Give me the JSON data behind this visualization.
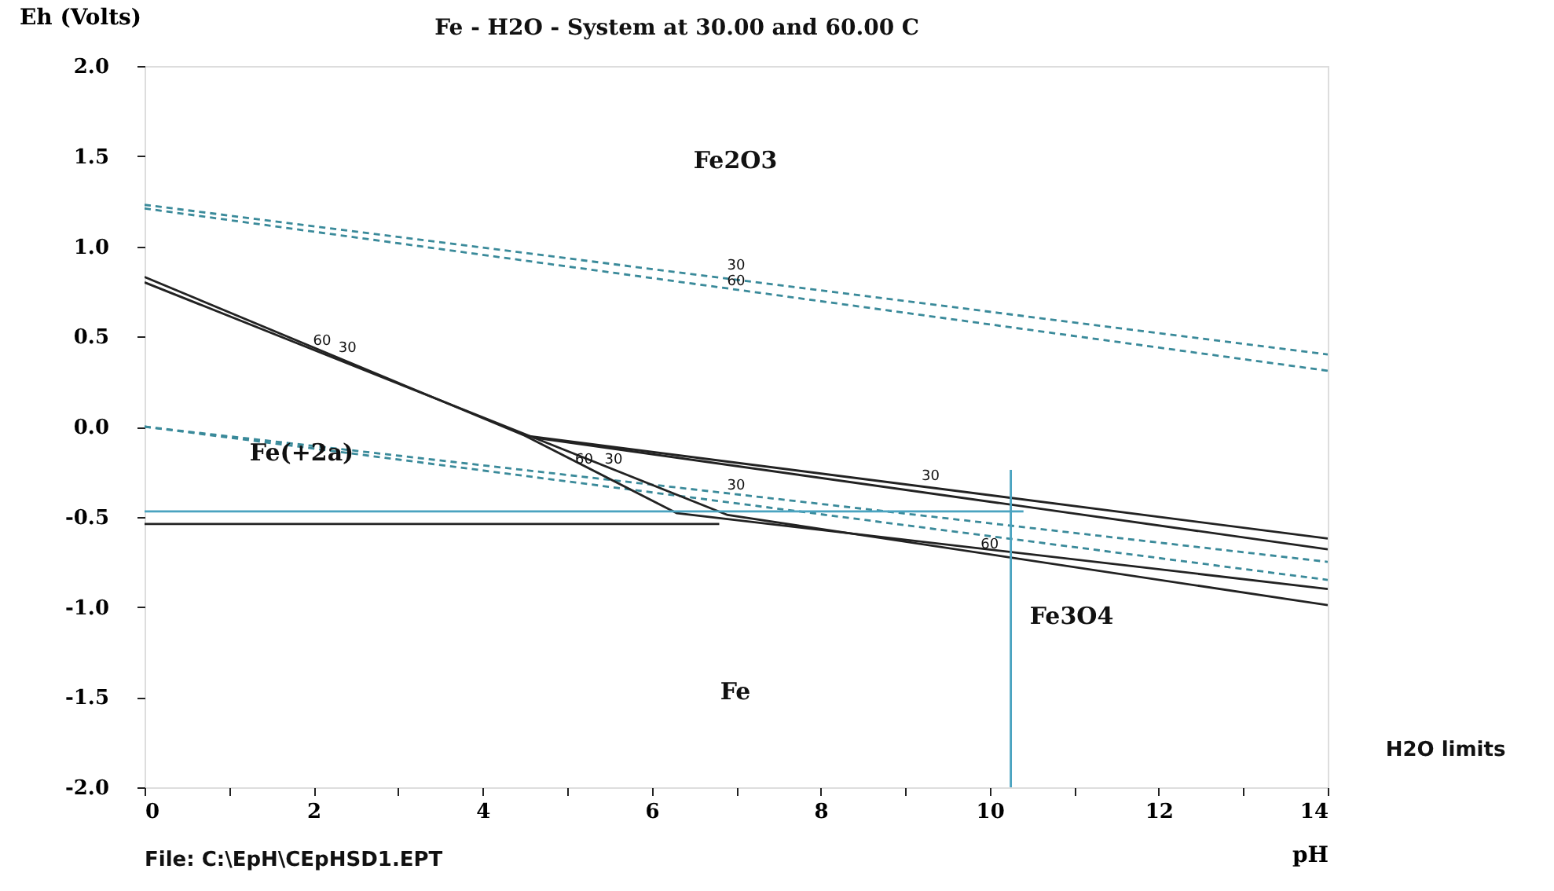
{
  "chart_data": {
    "type": "line",
    "title": "Fe - H2O - System at 30.00 and 60.00 C",
    "xlabel": "pH",
    "ylabel": "Eh (Volts)",
    "xlim": [
      0,
      14
    ],
    "ylim": [
      -2.0,
      2.0
    ],
    "xticks": [
      0,
      {
        "value": 1,
        "label": null
      },
      2,
      {
        "value": 3,
        "label": null
      },
      4,
      {
        "value": 5,
        "label": null
      },
      6,
      {
        "value": 7,
        "label": null
      },
      8,
      {
        "value": 9,
        "label": null
      },
      10,
      {
        "value": 11,
        "label": null
      },
      12,
      {
        "value": 13,
        "label": null
      },
      14
    ],
    "yticks": [
      {
        "value": -2.0,
        "label": "-2.0"
      },
      {
        "value": -1.5,
        "label": "-1.5"
      },
      {
        "value": -1.0,
        "label": "-1.0"
      },
      {
        "value": -0.5,
        "label": "-0.5"
      },
      {
        "value": 0,
        "label": "0.0"
      },
      {
        "value": 0.5,
        "label": "0.5"
      },
      {
        "value": 1.0,
        "label": "1.0"
      },
      {
        "value": 1.5,
        "label": "1.5"
      },
      {
        "value": 2.0,
        "label": "2.0"
      }
    ],
    "grid": false,
    "series": [
      {
        "color": "#3a8a9a",
        "line_style": "dashed",
        "x": [
          0,
          14
        ],
        "values": [
          1.23,
          0.4
        ]
      },
      {
        "color": "#3a8a9a",
        "line_style": "dashed",
        "x": [
          0,
          14
        ],
        "values": [
          1.21,
          0.31
        ]
      },
      {
        "color": "#3a8a9a",
        "line_style": "dashed",
        "x": [
          0,
          14
        ],
        "values": [
          0.0,
          -0.75
        ]
      },
      {
        "color": "#3a8a9a",
        "line_style": "dashed",
        "x": [
          0,
          14
        ],
        "values": [
          0.0,
          -0.85
        ]
      },
      {
        "color": "#222222",
        "line_style": "solid",
        "x": [
          0,
          4.5,
          14
        ],
        "values": [
          0.83,
          -0.05,
          -0.62
        ]
      },
      {
        "color": "#222222",
        "line_style": "solid",
        "x": [
          0,
          4.6,
          14
        ],
        "values": [
          0.8,
          -0.06,
          -0.68
        ]
      },
      {
        "color": "#222222",
        "line_style": "solid",
        "x": [
          4.5,
          6.3,
          14
        ],
        "values": [
          -0.05,
          -0.48,
          -0.9
        ]
      },
      {
        "color": "#222222",
        "line_style": "solid",
        "x": [
          4.6,
          6.9,
          14
        ],
        "values": [
          -0.06,
          -0.49,
          -0.99
        ]
      },
      {
        "color": "#222222",
        "line_style": "solid",
        "x": [
          0,
          6.8
        ],
        "values": [
          -0.54,
          -0.54
        ]
      },
      {
        "color": "#4aa3c0",
        "line_style": "solid",
        "x": [
          0,
          10.4
        ],
        "values": [
          -0.47,
          -0.47
        ]
      },
      {
        "color": "#4aa3c0",
        "line_style": "solid",
        "x": [
          10.25,
          10.25
        ],
        "values": [
          -0.24,
          -2.0
        ]
      }
    ],
    "annotations": [
      "Fe2O3",
      "Fe(+2a)",
      "Fe3O4",
      "Fe",
      {
        "text": "30",
        "x": 7,
        "y": 0.83
      },
      {
        "text": "60",
        "x": 7,
        "y": 0.74
      },
      {
        "text": "60",
        "x": 2.1,
        "y": 0.41
      },
      {
        "text": "30",
        "x": 2.4,
        "y": 0.37
      },
      {
        "text": "60",
        "x": 5.2,
        "y": -0.25
      },
      {
        "text": "30",
        "x": 5.55,
        "y": -0.25
      },
      {
        "text": "30",
        "x": 7,
        "y": -0.39
      },
      {
        "text": "30",
        "x": 9.3,
        "y": -0.34
      },
      {
        "text": "60",
        "x": 10,
        "y": -0.72
      },
      "H2O limits",
      "File: C:\\EpH\\CEpHSD1.EPT"
    ]
  }
}
